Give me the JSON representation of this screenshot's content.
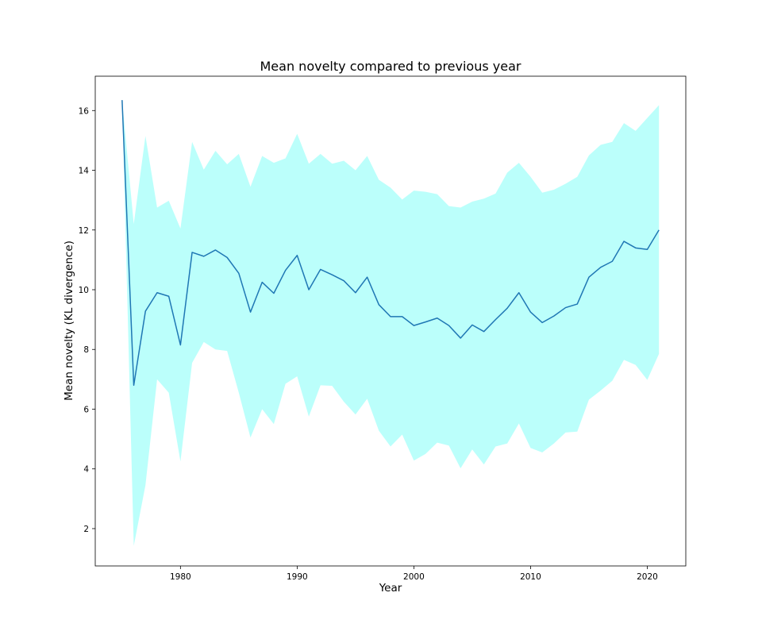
{
  "chart_data": {
    "type": "line",
    "title": "Mean novelty compared to previous year",
    "xlabel": "Year",
    "ylabel": "Mean novelty (KL divergence)",
    "xlim": [
      1972.7,
      2023.3
    ],
    "ylim": [
      0.75,
      17.15
    ],
    "xticks": [
      1980,
      1990,
      2000,
      2010,
      2020
    ],
    "yticks": [
      2,
      4,
      6,
      8,
      10,
      12,
      14,
      16
    ],
    "grid": false,
    "legend": "none",
    "colors": {
      "line": "#1f77b4",
      "band": "#bbfffb"
    },
    "series": [
      {
        "x": [
          1975,
          1976,
          1977,
          1978,
          1979,
          1980,
          1981,
          1982,
          1983,
          1984,
          1985,
          1986,
          1987,
          1988,
          1989,
          1990,
          1991,
          1992,
          1993,
          1994,
          1995,
          1996,
          1997,
          1998,
          1999,
          2000,
          2001,
          2002,
          2003,
          2004,
          2005,
          2006,
          2007,
          2008,
          2009,
          2010,
          2011,
          2012,
          2013,
          2014,
          2015,
          2016,
          2017,
          2018,
          2019,
          2020,
          2021
        ],
        "mean": [
          16.35,
          6.8,
          9.28,
          9.9,
          9.78,
          8.15,
          11.25,
          11.12,
          11.33,
          11.08,
          10.55,
          9.25,
          10.25,
          9.88,
          10.65,
          11.15,
          10.0,
          10.68,
          10.5,
          10.3,
          9.9,
          10.42,
          9.5,
          9.1,
          9.1,
          8.8,
          8.92,
          9.05,
          8.8,
          8.38,
          8.82,
          8.6,
          9.0,
          9.38,
          9.9,
          9.25,
          8.9,
          9.12,
          9.4,
          9.52,
          10.42,
          10.75,
          10.95,
          11.62,
          11.4,
          11.35,
          12.0
        ],
        "upper": [
          16.35,
          12.2,
          15.15,
          12.75,
          12.98,
          12.05,
          14.95,
          14.02,
          14.65,
          14.2,
          14.55,
          13.45,
          14.48,
          14.25,
          14.4,
          15.22,
          14.22,
          14.55,
          14.22,
          14.32,
          14.0,
          14.48,
          13.68,
          13.42,
          13.02,
          13.32,
          13.28,
          13.2,
          12.8,
          12.75,
          12.95,
          13.05,
          13.22,
          13.92,
          14.25,
          13.78,
          13.25,
          13.35,
          13.55,
          13.78,
          14.5,
          14.85,
          14.95,
          15.58,
          15.32,
          15.75,
          16.18
        ],
        "lower": [
          16.35,
          1.42,
          3.45,
          7.0,
          6.55,
          4.25,
          7.55,
          8.25,
          8.0,
          7.95,
          6.55,
          5.05,
          6.0,
          5.5,
          6.85,
          7.1,
          5.75,
          6.8,
          6.78,
          6.25,
          5.82,
          6.35,
          5.28,
          4.75,
          5.15,
          4.28,
          4.5,
          4.88,
          4.78,
          4.02,
          4.65,
          4.15,
          4.75,
          4.85,
          5.52,
          4.7,
          4.55,
          4.85,
          5.22,
          5.25,
          6.32,
          6.62,
          6.95,
          7.65,
          7.48,
          6.98,
          7.85
        ]
      }
    ]
  }
}
